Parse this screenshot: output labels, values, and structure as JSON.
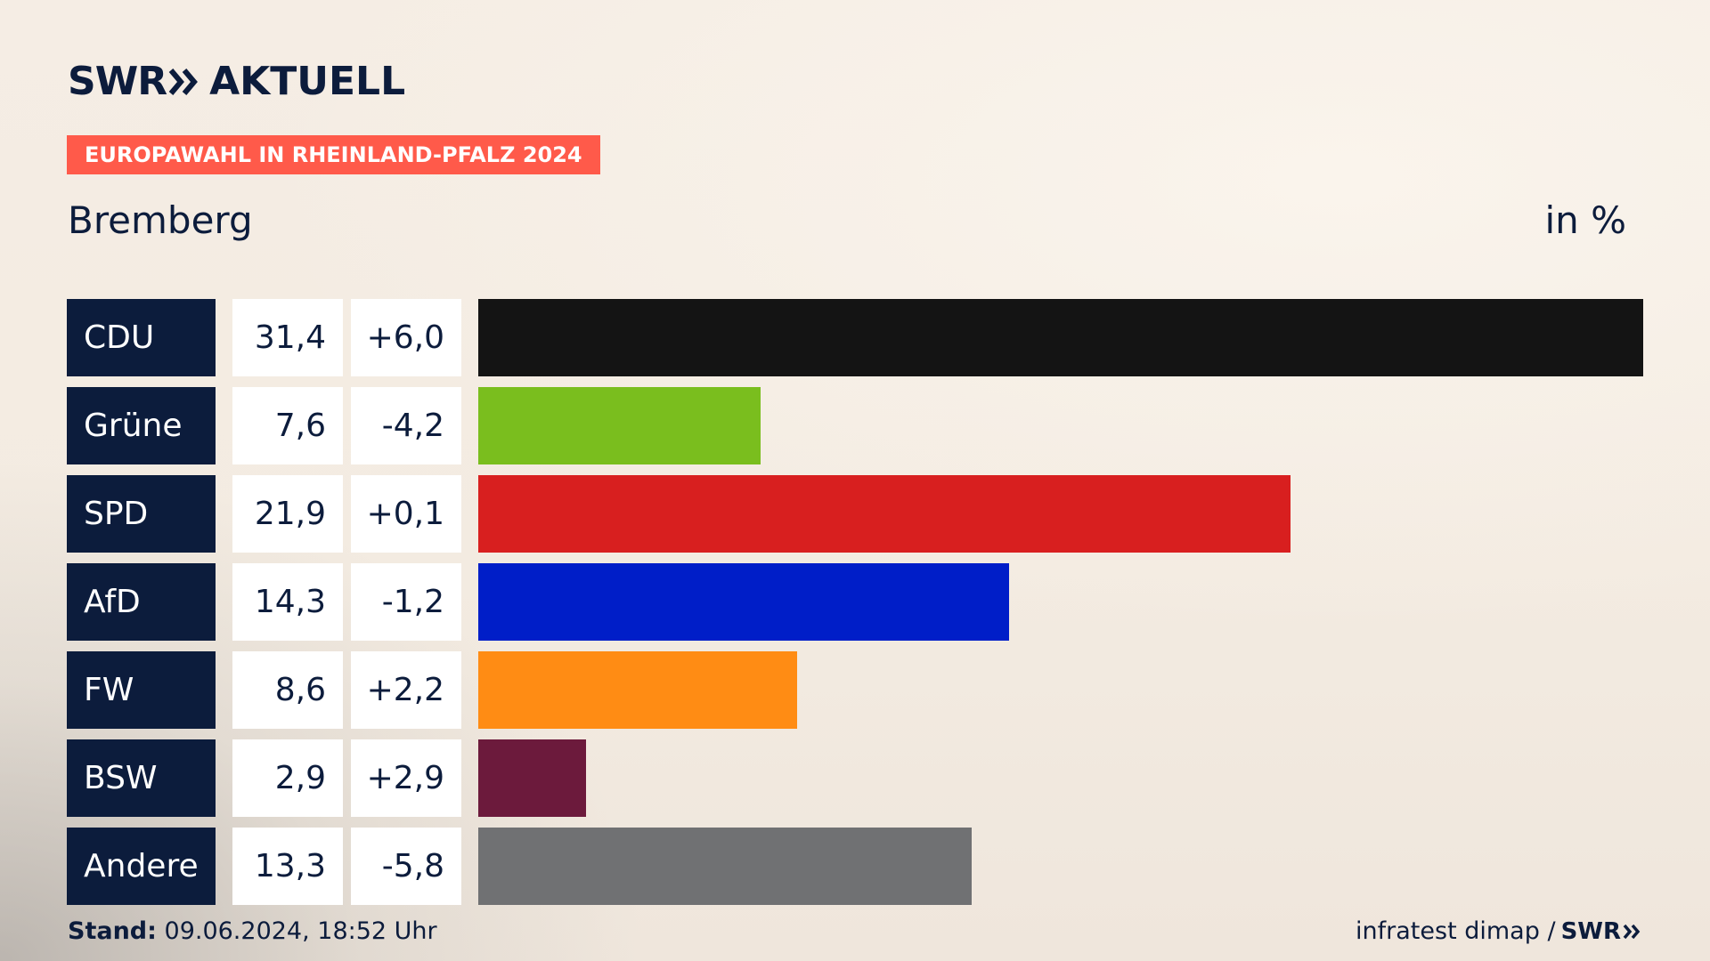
{
  "brand": {
    "logo_text": "SWR",
    "logo_suffix": "AKTUELL"
  },
  "tag": "EUROPAWAHL IN RHEINLAND-PFALZ 2024",
  "region": "Bremberg",
  "unit_label": "in %",
  "colors": {
    "navy": "#0c1c3c",
    "tag_red": "#ff5a4a"
  },
  "chart_data": {
    "type": "bar",
    "orientation": "horizontal",
    "title": "Bremberg",
    "unit": "in %",
    "categories": [
      "CDU",
      "Grüne",
      "SPD",
      "AfD",
      "FW",
      "BSW",
      "Andere"
    ],
    "values": [
      31.4,
      7.6,
      21.9,
      14.3,
      8.6,
      2.9,
      13.3
    ],
    "value_labels": [
      "31,4",
      "7,6",
      "21,9",
      "14,3",
      "8,6",
      "2,9",
      "13,3"
    ],
    "changes": [
      6.0,
      -4.2,
      0.1,
      -1.2,
      2.2,
      2.9,
      -5.8
    ],
    "change_labels": [
      "+6,0",
      "-4,2",
      "+0,1",
      "-1,2",
      "+2,2",
      "+2,9",
      "-5,8"
    ],
    "colors": [
      "#141414",
      "#7abe1e",
      "#d81f1f",
      "#001ec8",
      "#ff8c14",
      "#6c1a3c",
      "#707173"
    ],
    "xlim": [
      0,
      31.4
    ]
  },
  "footer": {
    "stand_label": "Stand:",
    "stand_value": "09.06.2024, 18:52 Uhr",
    "source": "infratest dimap /",
    "source_logo": "SWR"
  }
}
